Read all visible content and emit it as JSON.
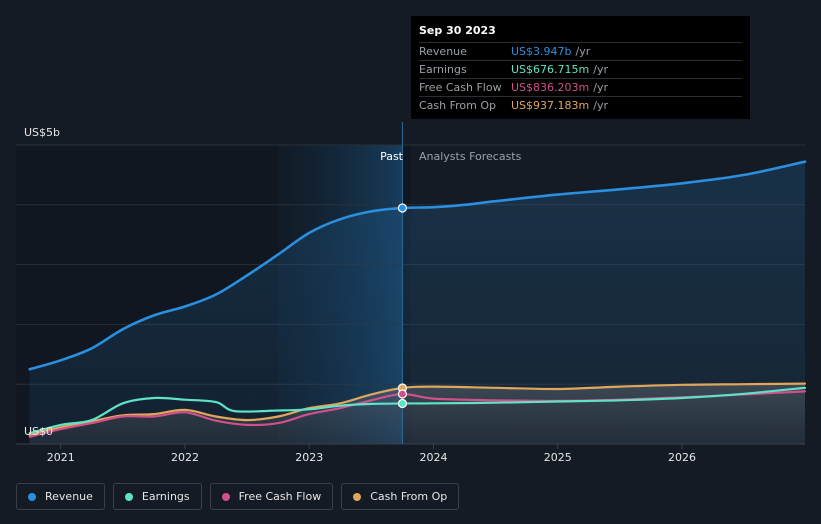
{
  "chart_data": {
    "type": "line",
    "y_axis_top_label": "US$5b",
    "y_axis_bottom_label": "US$0",
    "ylim": [
      0,
      5
    ],
    "x_ticks": [
      "2021",
      "2022",
      "2023",
      "2024",
      "2025",
      "2026"
    ],
    "x_tick_values": [
      2021.0,
      2022.0,
      2023.0,
      2024.0,
      2025.0,
      2026.0
    ],
    "xlim": [
      2020.64,
      2026.99
    ],
    "past_label": "Past",
    "forecast_label": "Analysts Forecasts",
    "divider_x": 2023.75,
    "highlight_start": 2022.75,
    "series": [
      {
        "name": "Revenue",
        "color": "#2b8fe0",
        "x": [
          2020.75,
          2021.0,
          2021.25,
          2021.5,
          2021.75,
          2022.0,
          2022.25,
          2022.5,
          2022.75,
          2023.0,
          2023.25,
          2023.5,
          2023.75,
          2024.0,
          2024.25,
          2024.5,
          2025.0,
          2025.5,
          2026.0,
          2026.5,
          2027.0
        ],
        "values": [
          1.25,
          1.4,
          1.6,
          1.92,
          2.15,
          2.3,
          2.5,
          2.82,
          3.17,
          3.53,
          3.76,
          3.89,
          3.947,
          3.96,
          4.0,
          4.06,
          4.17,
          4.26,
          4.36,
          4.5,
          4.72
        ]
      },
      {
        "name": "Earnings",
        "color": "#5fe3c6",
        "x": [
          2020.75,
          2021.0,
          2021.25,
          2021.5,
          2021.75,
          2022.0,
          2022.25,
          2022.4,
          2022.75,
          2023.0,
          2023.25,
          2023.5,
          2023.75,
          2024.0,
          2024.5,
          2025.0,
          2025.5,
          2026.0,
          2026.5,
          2027.0
        ],
        "values": [
          0.18,
          0.32,
          0.4,
          0.68,
          0.77,
          0.74,
          0.7,
          0.55,
          0.56,
          0.58,
          0.64,
          0.67,
          0.677,
          0.68,
          0.69,
          0.71,
          0.73,
          0.77,
          0.84,
          0.94
        ]
      },
      {
        "name": "Free Cash Flow",
        "color": "#d0508a",
        "x": [
          2020.75,
          2021.0,
          2021.25,
          2021.5,
          2021.75,
          2022.0,
          2022.25,
          2022.5,
          2022.75,
          2023.0,
          2023.25,
          2023.5,
          2023.75,
          2024.0,
          2024.5,
          2025.0,
          2025.5,
          2026.0,
          2026.5,
          2027.0
        ],
        "values": [
          0.12,
          0.25,
          0.35,
          0.46,
          0.46,
          0.53,
          0.39,
          0.32,
          0.35,
          0.5,
          0.6,
          0.73,
          0.836,
          0.76,
          0.73,
          0.72,
          0.74,
          0.78,
          0.83,
          0.88
        ]
      },
      {
        "name": "Cash From Op",
        "color": "#e0a75a",
        "x": [
          2020.75,
          2021.0,
          2021.25,
          2021.5,
          2021.75,
          2022.0,
          2022.25,
          2022.5,
          2022.75,
          2023.0,
          2023.25,
          2023.5,
          2023.75,
          2024.0,
          2024.5,
          2025.0,
          2025.5,
          2026.0,
          2026.5,
          2027.0
        ],
        "values": [
          0.15,
          0.28,
          0.38,
          0.48,
          0.5,
          0.57,
          0.46,
          0.4,
          0.46,
          0.6,
          0.68,
          0.83,
          0.937,
          0.96,
          0.94,
          0.92,
          0.96,
          0.99,
          1.0,
          1.01
        ]
      }
    ]
  },
  "tooltip": {
    "date": "Sep 30 2023",
    "rows": [
      {
        "label": "Revenue",
        "value": "US$3.947b",
        "unit": "/yr",
        "color": "#2b8fe0"
      },
      {
        "label": "Earnings",
        "value": "US$676.715m",
        "unit": "/yr",
        "color": "#5fe3c6"
      },
      {
        "label": "Free Cash Flow",
        "value": "US$836.203m",
        "unit": "/yr",
        "color": "#d0508a"
      },
      {
        "label": "Cash From Op",
        "value": "US$937.183m",
        "unit": "/yr",
        "color": "#e0a75a"
      }
    ]
  },
  "legend": [
    {
      "label": "Revenue",
      "color": "#2b8fe0"
    },
    {
      "label": "Earnings",
      "color": "#5fe3c6"
    },
    {
      "label": "Free Cash Flow",
      "color": "#d0508a"
    },
    {
      "label": "Cash From Op",
      "color": "#e0a75a"
    }
  ]
}
